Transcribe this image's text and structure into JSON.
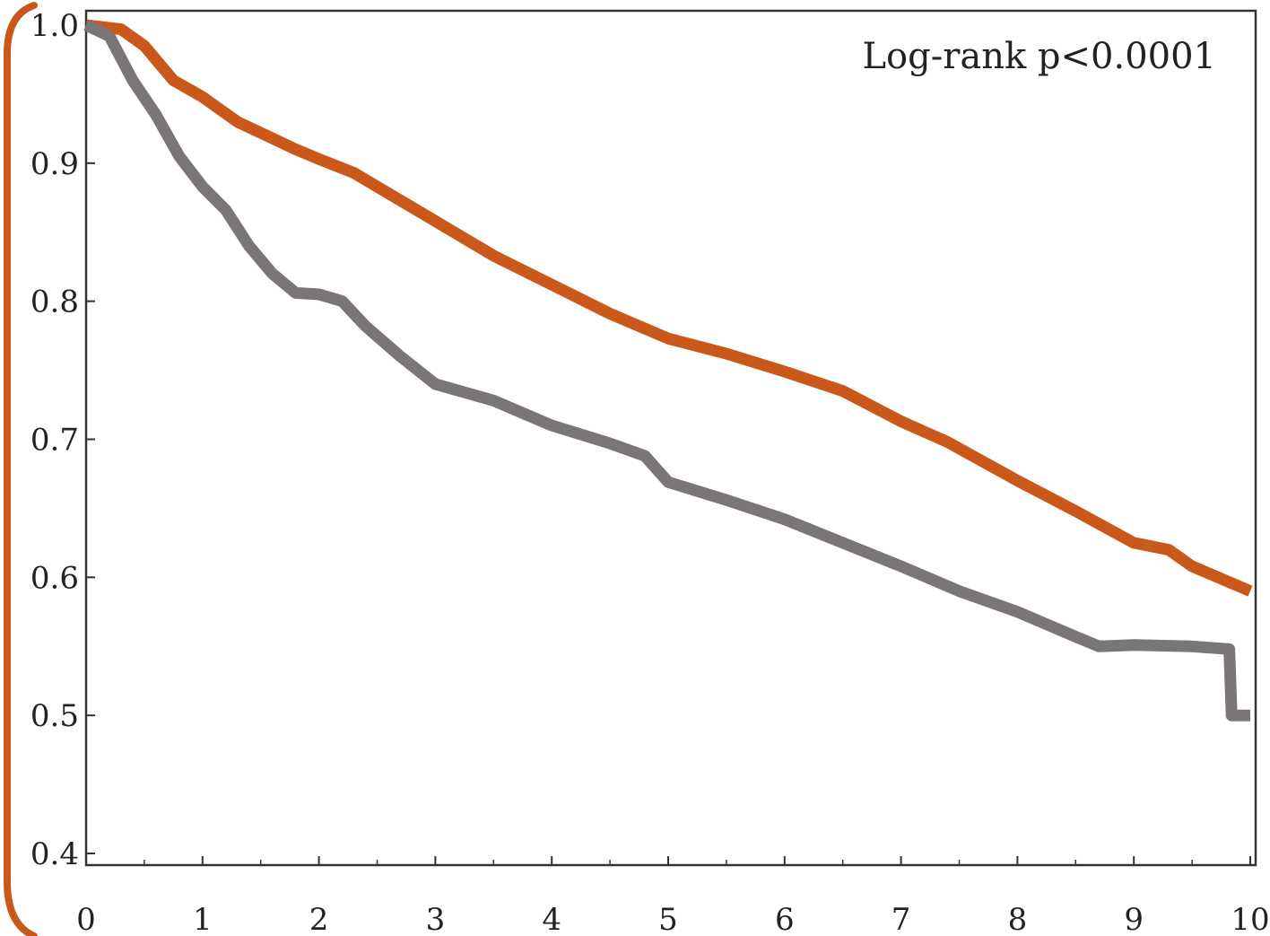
{
  "chart_data": {
    "type": "line",
    "title": "",
    "xlabel": "",
    "ylabel": "",
    "xlim": [
      0,
      10
    ],
    "ylim": [
      0.4,
      1.0
    ],
    "x_ticks": [
      0,
      1,
      2,
      3,
      4,
      5,
      6,
      7,
      8,
      9,
      10
    ],
    "y_ticks": [
      0.4,
      0.5,
      0.6,
      0.7,
      0.8,
      0.9,
      1.0
    ],
    "x_tick_labels": [
      "0",
      "1",
      "2",
      "3",
      "4",
      "5",
      "6",
      "7",
      "8",
      "9",
      "10"
    ],
    "y_tick_labels": [
      "0.4",
      "0.5",
      "0.6",
      "0.7",
      "0.8",
      "0.9",
      "1.0"
    ],
    "annotation": "Log-rank p<0.0001",
    "grid": false,
    "series": [
      {
        "color": "#c9581a",
        "step": false,
        "points": [
          [
            0,
            1.0
          ],
          [
            0.3,
            0.997
          ],
          [
            0.5,
            0.985
          ],
          [
            0.75,
            0.96
          ],
          [
            1.0,
            0.948
          ],
          [
            1.3,
            0.93
          ],
          [
            1.6,
            0.918
          ],
          [
            1.8,
            0.91
          ],
          [
            2.0,
            0.903
          ],
          [
            2.3,
            0.893
          ],
          [
            2.7,
            0.873
          ],
          [
            3.0,
            0.858
          ],
          [
            3.5,
            0.833
          ],
          [
            4.0,
            0.812
          ],
          [
            4.5,
            0.791
          ],
          [
            5.0,
            0.773
          ],
          [
            5.5,
            0.762
          ],
          [
            6.0,
            0.749
          ],
          [
            6.5,
            0.735
          ],
          [
            7.0,
            0.713
          ],
          [
            7.4,
            0.698
          ],
          [
            8.0,
            0.67
          ],
          [
            8.5,
            0.648
          ],
          [
            9.0,
            0.625
          ],
          [
            9.3,
            0.62
          ],
          [
            9.5,
            0.608
          ],
          [
            10.0,
            0.59
          ]
        ]
      },
      {
        "color": "#7a7678",
        "step": false,
        "points": [
          [
            0,
            1.0
          ],
          [
            0.2,
            0.992
          ],
          [
            0.4,
            0.96
          ],
          [
            0.6,
            0.935
          ],
          [
            0.8,
            0.905
          ],
          [
            1.0,
            0.883
          ],
          [
            1.2,
            0.866
          ],
          [
            1.4,
            0.84
          ],
          [
            1.6,
            0.82
          ],
          [
            1.8,
            0.806
          ],
          [
            2.0,
            0.805
          ],
          [
            2.2,
            0.8
          ],
          [
            2.4,
            0.782
          ],
          [
            2.7,
            0.76
          ],
          [
            3.0,
            0.74
          ],
          [
            3.5,
            0.728
          ],
          [
            4.0,
            0.71
          ],
          [
            4.5,
            0.697
          ],
          [
            4.8,
            0.688
          ],
          [
            5.0,
            0.669
          ],
          [
            5.5,
            0.656
          ],
          [
            6.0,
            0.642
          ],
          [
            6.5,
            0.625
          ],
          [
            7.0,
            0.608
          ],
          [
            7.5,
            0.59
          ],
          [
            8.0,
            0.575
          ],
          [
            8.5,
            0.557
          ],
          [
            8.7,
            0.55
          ],
          [
            9.0,
            0.551
          ],
          [
            9.5,
            0.55
          ],
          [
            9.82,
            0.548
          ],
          [
            9.84,
            0.5
          ],
          [
            10.0,
            0.5
          ]
        ]
      }
    ]
  }
}
